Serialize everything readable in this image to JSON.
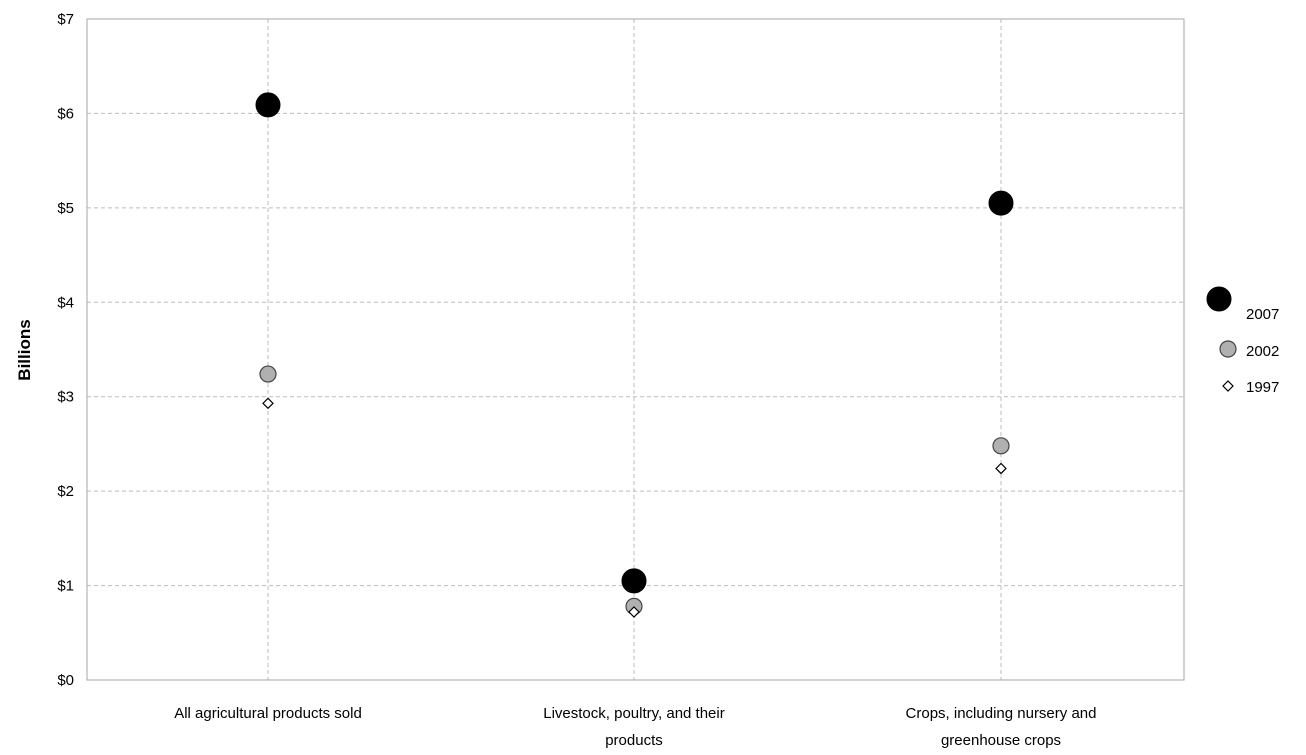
{
  "chart_data": {
    "type": "scatter",
    "title": "",
    "xlabel": "",
    "ylabel": "Billions",
    "categories": [
      [
        "All agricultural products sold"
      ],
      [
        "Livestock, poultry, and their",
        "products"
      ],
      [
        "Crops, including nursery and",
        "greenhouse crops"
      ]
    ],
    "y_ticks": [
      "$0",
      "$1",
      "$2",
      "$3",
      "$4",
      "$5",
      "$6",
      "$7"
    ],
    "ylim": [
      0,
      7
    ],
    "grid": true,
    "legend_position": "right",
    "series": [
      {
        "name": "2007",
        "values": [
          6.09,
          1.05,
          5.05
        ],
        "marker": "large-circle",
        "color": "#000000"
      },
      {
        "name": "2002",
        "values": [
          3.24,
          0.78,
          2.48
        ],
        "marker": "circle",
        "color": "#b0b0b0"
      },
      {
        "name": "1997",
        "values": [
          2.93,
          0.72,
          2.24
        ],
        "marker": "diamond",
        "color": "#ffffff"
      }
    ]
  }
}
